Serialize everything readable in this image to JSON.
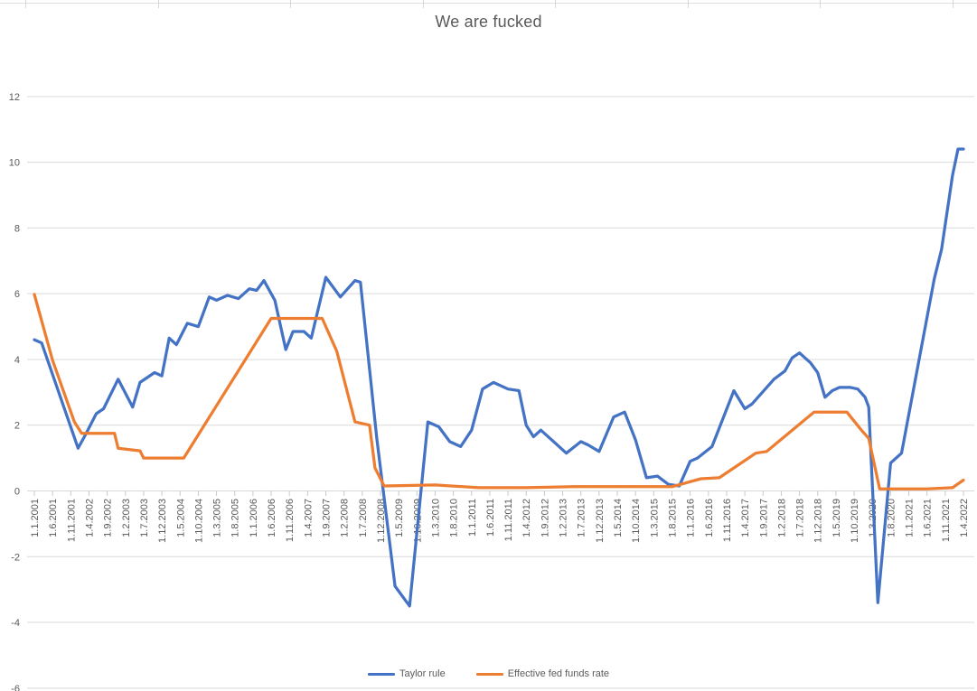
{
  "chart_data": {
    "type": "line",
    "title": "We are fucked",
    "x_axis": {
      "unit": "months since Jan 2001",
      "label_interval_months": 5,
      "categories": [
        "1.1.2001",
        "1.6.2001",
        "1.11.2001",
        "1.4.2002",
        "1.9.2002",
        "1.2.2003",
        "1.7.2003",
        "1.12.2003",
        "1.5.2004",
        "1.10.2004",
        "1.3.2005",
        "1.8.2005",
        "1.1.2006",
        "1.6.2006",
        "1.11.2006",
        "1.4.2007",
        "1.9.2007",
        "1.2.2008",
        "1.7.2008",
        "1.12.2008",
        "1.5.2009",
        "1.10.2009",
        "1.3.2010",
        "1.8.2010",
        "1.1.2011",
        "1.6.2011",
        "1.11.2011",
        "1.4.2012",
        "1.9.2012",
        "1.2.2013",
        "1.7.2013",
        "1.12.2013",
        "1.5.2014",
        "1.10.2014",
        "1.3.2015",
        "1.8.2015",
        "1.1.2016",
        "1.6.2016",
        "1.11.2016",
        "1.4.2017",
        "1.9.2017",
        "1.2.2018",
        "1.7.2018",
        "1.12.2018",
        "1.5.2019",
        "1.10.2019",
        "1.3.2020",
        "1.8.2020",
        "1.1.2021",
        "1.6.2021",
        "1.11.2021",
        "1.4.2022"
      ]
    },
    "y_axis": {
      "ticks": [
        -6,
        -4,
        -2,
        0,
        2,
        4,
        6,
        8,
        10,
        12
      ],
      "ylim": [
        -6,
        12
      ]
    },
    "grid": true,
    "legend_position": "bottom",
    "style": {
      "gridline_color": "#d9d9d9",
      "axis_tick_color": "#c9c9c9",
      "axis_text_color": "#595959",
      "title_color": "#595959",
      "background": "#ffffff"
    },
    "series": [
      {
        "name": "Taylor rule",
        "color": "#4472C4",
        "points": [
          [
            0,
            4.6
          ],
          [
            2,
            4.5
          ],
          [
            12,
            1.3
          ],
          [
            14,
            1.7
          ],
          [
            17,
            2.35
          ],
          [
            19,
            2.5
          ],
          [
            23,
            3.4
          ],
          [
            27,
            2.55
          ],
          [
            29,
            3.3
          ],
          [
            33,
            3.6
          ],
          [
            35,
            3.5
          ],
          [
            37,
            4.65
          ],
          [
            39,
            4.45
          ],
          [
            42,
            5.1
          ],
          [
            45,
            5.0
          ],
          [
            48,
            5.9
          ],
          [
            50,
            5.8
          ],
          [
            53,
            5.95
          ],
          [
            56,
            5.85
          ],
          [
            59,
            6.15
          ],
          [
            61,
            6.1
          ],
          [
            63,
            6.4
          ],
          [
            66,
            5.8
          ],
          [
            69,
            4.3
          ],
          [
            71,
            4.85
          ],
          [
            74,
            4.85
          ],
          [
            76,
            4.65
          ],
          [
            80,
            6.5
          ],
          [
            84,
            5.9
          ],
          [
            88,
            6.4
          ],
          [
            89.5,
            6.35
          ],
          [
            94,
            1.6
          ],
          [
            99,
            -2.9
          ],
          [
            103,
            -3.5
          ],
          [
            108,
            2.1
          ],
          [
            111,
            1.95
          ],
          [
            114,
            1.5
          ],
          [
            117,
            1.35
          ],
          [
            120,
            1.85
          ],
          [
            123,
            3.1
          ],
          [
            126,
            3.3
          ],
          [
            130,
            3.1
          ],
          [
            133,
            3.05
          ],
          [
            135,
            2.0
          ],
          [
            137,
            1.65
          ],
          [
            139,
            1.85
          ],
          [
            143,
            1.45
          ],
          [
            146,
            1.15
          ],
          [
            150,
            1.5
          ],
          [
            152,
            1.4
          ],
          [
            155,
            1.2
          ],
          [
            159,
            2.25
          ],
          [
            162,
            2.4
          ],
          [
            165,
            1.55
          ],
          [
            168,
            0.4
          ],
          [
            171,
            0.45
          ],
          [
            174,
            0.2
          ],
          [
            177,
            0.15
          ],
          [
            180,
            0.9
          ],
          [
            182,
            1.0
          ],
          [
            186,
            1.35
          ],
          [
            192,
            3.05
          ],
          [
            195,
            2.5
          ],
          [
            197,
            2.65
          ],
          [
            203,
            3.4
          ],
          [
            206,
            3.65
          ],
          [
            208,
            4.05
          ],
          [
            210,
            4.2
          ],
          [
            213,
            3.9
          ],
          [
            215,
            3.6
          ],
          [
            217,
            2.85
          ],
          [
            219,
            3.05
          ],
          [
            221,
            3.15
          ],
          [
            224,
            3.15
          ],
          [
            226,
            3.1
          ],
          [
            228,
            2.85
          ],
          [
            229,
            2.55
          ],
          [
            231.5,
            -3.4
          ],
          [
            235,
            0.85
          ],
          [
            238,
            1.15
          ],
          [
            247,
            6.45
          ],
          [
            249,
            7.35
          ],
          [
            252,
            9.6
          ],
          [
            253.5,
            10.4
          ],
          [
            255,
            10.4
          ]
        ]
      },
      {
        "name": "Effective fed funds rate",
        "color": "#ED7D31",
        "points": [
          [
            0,
            5.98
          ],
          [
            5,
            3.97
          ],
          [
            11,
            2.1
          ],
          [
            13,
            1.75
          ],
          [
            22,
            1.75
          ],
          [
            23,
            1.3
          ],
          [
            29,
            1.22
          ],
          [
            30,
            1.0
          ],
          [
            41,
            1.0
          ],
          [
            65,
            5.25
          ],
          [
            79,
            5.25
          ],
          [
            83,
            4.25
          ],
          [
            88,
            2.1
          ],
          [
            92,
            2.0
          ],
          [
            93.5,
            0.7
          ],
          [
            96,
            0.15
          ],
          [
            110,
            0.18
          ],
          [
            122,
            0.1
          ],
          [
            135,
            0.1
          ],
          [
            148,
            0.13
          ],
          [
            162,
            0.13
          ],
          [
            175,
            0.13
          ],
          [
            179,
            0.25
          ],
          [
            183,
            0.37
          ],
          [
            188,
            0.4
          ],
          [
            198,
            1.15
          ],
          [
            201,
            1.2
          ],
          [
            214,
            2.4
          ],
          [
            223,
            2.4
          ],
          [
            227,
            1.85
          ],
          [
            229,
            1.6
          ],
          [
            232,
            0.06
          ],
          [
            245,
            0.06
          ],
          [
            252,
            0.1
          ],
          [
            255,
            0.33
          ]
        ]
      }
    ]
  }
}
